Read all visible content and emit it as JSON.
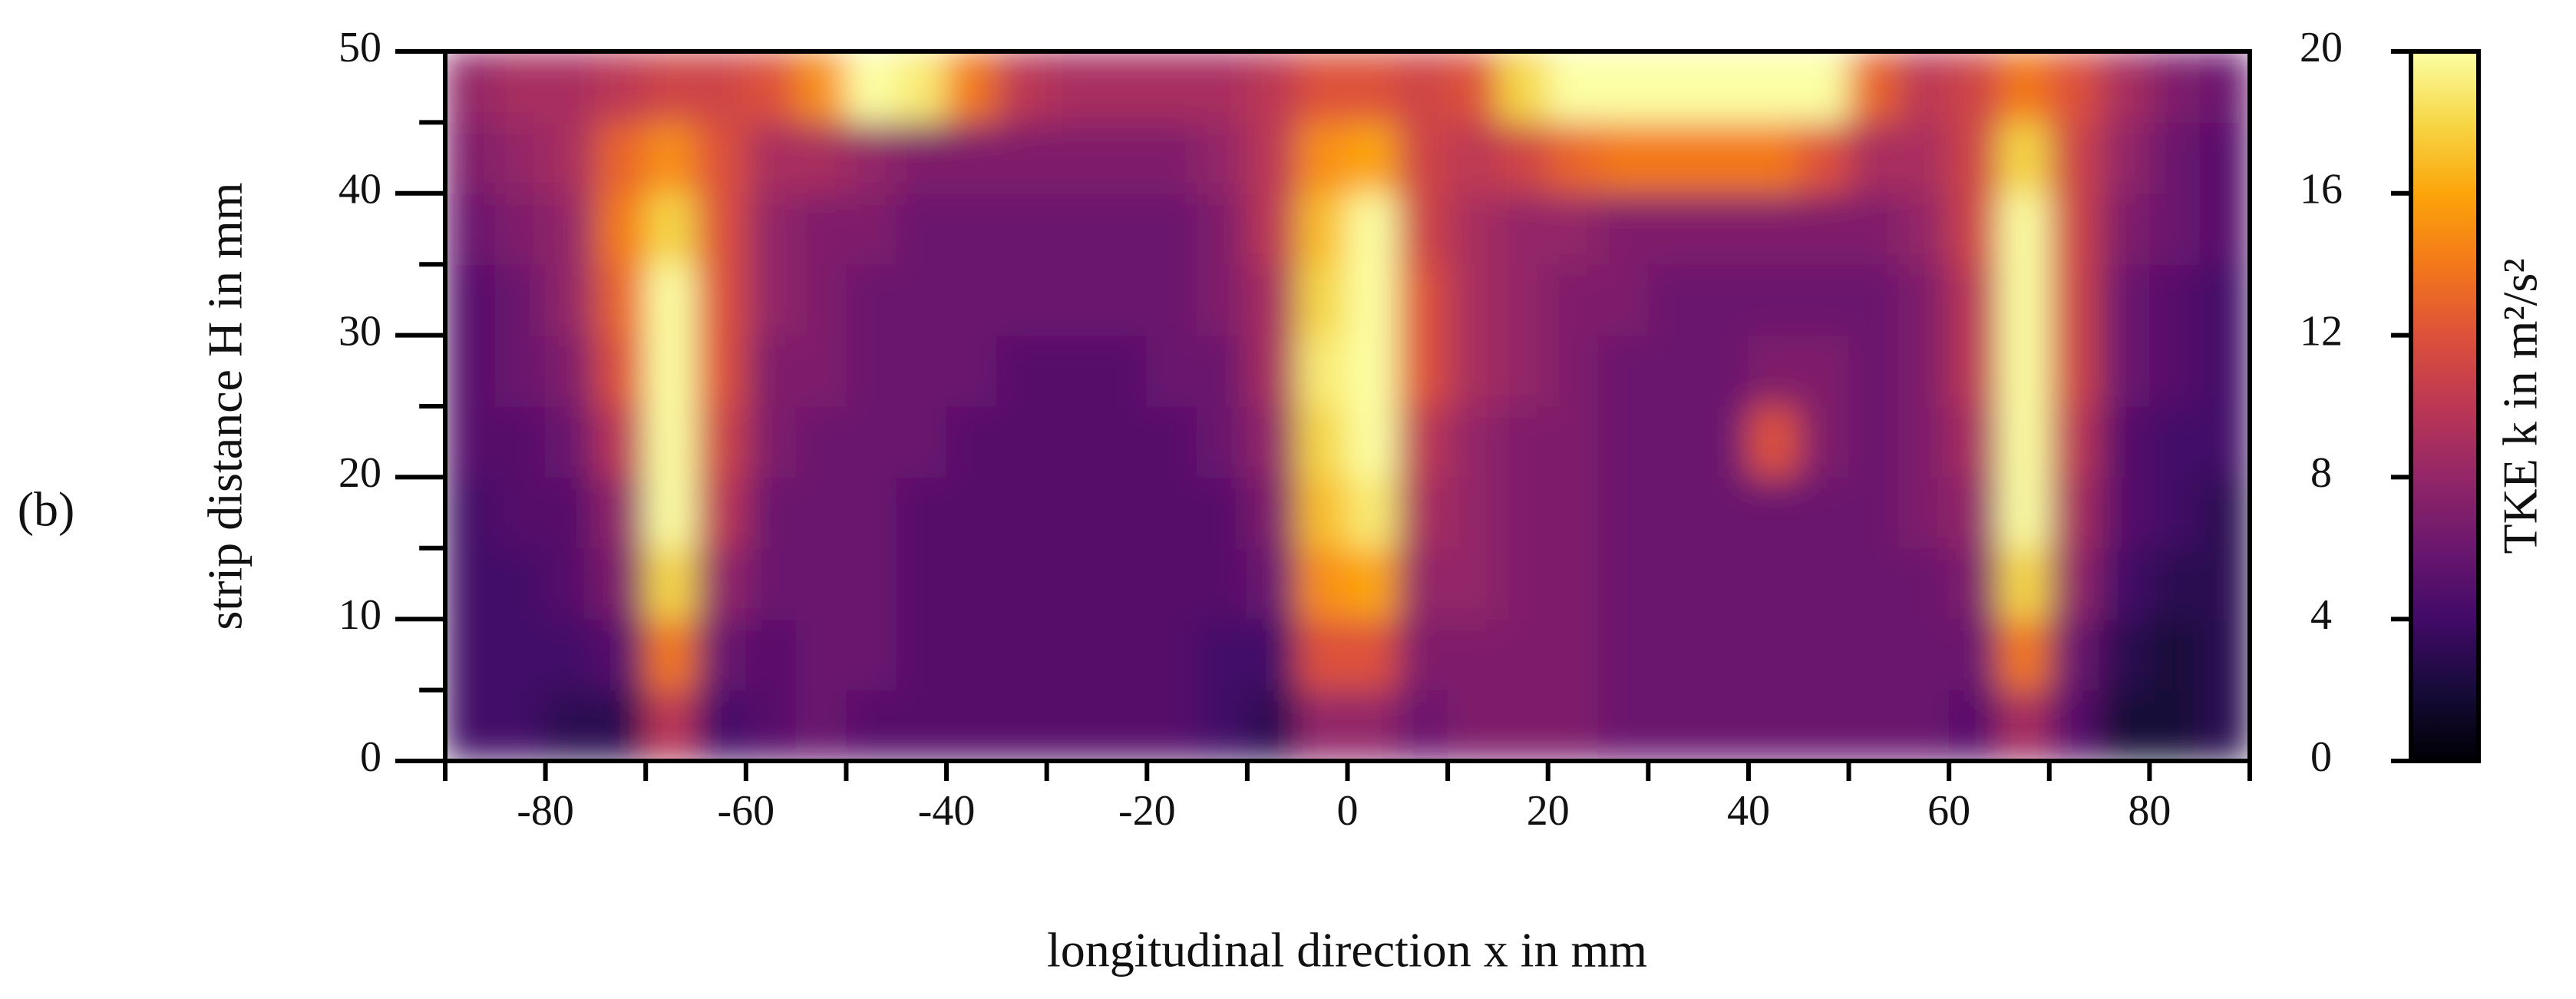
{
  "chart_data": {
    "type": "heatmap",
    "panel_label": "(b)",
    "xlabel": "longitudinal direction x in mm",
    "ylabel": "strip distance H in mm",
    "colorbar_label": "TKE k in m²/s²",
    "colormap": "inferno",
    "xlim": [
      -90,
      90
    ],
    "ylim": [
      0,
      50
    ],
    "zlim": [
      0,
      20
    ],
    "xticks": [
      -80,
      -60,
      -40,
      -20,
      0,
      20,
      40,
      60,
      80
    ],
    "xticks_minor": [
      -90,
      -70,
      -50,
      -30,
      -10,
      10,
      30,
      50,
      70,
      90
    ],
    "yticks": [
      0,
      10,
      20,
      30,
      40,
      50
    ],
    "yticks_minor": [
      5,
      15,
      25,
      35,
      45
    ],
    "zticks": [
      0,
      4,
      8,
      12,
      16,
      20
    ],
    "x": [
      -87.5,
      -82.5,
      -77.5,
      -72.5,
      -67.5,
      -62.5,
      -57.5,
      -52.5,
      -47.5,
      -42.5,
      -37.5,
      -32.5,
      -27.5,
      -22.5,
      -17.5,
      -12.5,
      -7.5,
      -2.5,
      2.5,
      7.5,
      12.5,
      17.5,
      22.5,
      27.5,
      32.5,
      37.5,
      42.5,
      47.5,
      52.5,
      57.5,
      62.5,
      67.5,
      72.5,
      77.5,
      82.5,
      87.5
    ],
    "y": [
      2.5,
      7.5,
      12.5,
      17.5,
      22.5,
      27.5,
      32.5,
      37.5,
      42.5,
      47.5
    ],
    "z": [
      [
        4,
        4,
        3,
        3,
        10,
        4,
        5,
        6,
        5,
        5,
        5,
        5,
        5,
        5,
        5,
        4,
        3,
        8,
        8,
        6,
        7,
        7,
        7,
        6,
        6,
        6,
        6,
        6,
        6,
        6,
        5,
        9,
        5,
        2,
        2,
        3
      ],
      [
        4,
        4,
        4,
        5,
        14,
        6,
        5,
        6,
        6,
        5,
        5,
        5,
        5,
        5,
        5,
        4,
        4,
        12,
        12,
        7,
        7,
        7,
        7,
        6,
        6,
        6,
        6,
        6,
        6,
        6,
        6,
        14,
        6,
        3,
        2,
        3
      ],
      [
        4,
        4,
        5,
        7,
        18,
        8,
        6,
        6,
        6,
        5,
        5,
        5,
        5,
        5,
        5,
        5,
        6,
        15,
        16,
        8,
        8,
        7,
        7,
        6,
        6,
        6,
        6,
        6,
        6,
        6,
        7,
        18,
        8,
        4,
        3,
        3
      ],
      [
        4,
        5,
        5,
        8,
        21,
        10,
        6,
        6,
        6,
        5,
        5,
        5,
        5,
        5,
        5,
        5,
        7,
        17,
        19,
        9,
        8,
        7,
        7,
        6,
        6,
        6,
        6,
        6,
        6,
        7,
        8,
        21,
        9,
        5,
        4,
        3
      ],
      [
        5,
        5,
        6,
        10,
        22,
        11,
        7,
        6,
        6,
        6,
        5,
        5,
        5,
        5,
        5,
        6,
        8,
        18,
        21,
        10,
        8,
        7,
        7,
        6,
        6,
        6,
        12,
        7,
        6,
        7,
        9,
        22,
        10,
        5,
        4,
        4
      ],
      [
        5,
        6,
        7,
        12,
        22,
        12,
        7,
        7,
        6,
        6,
        6,
        5,
        5,
        5,
        6,
        6,
        9,
        19,
        22,
        12,
        9,
        8,
        7,
        6,
        6,
        6,
        7,
        7,
        6,
        7,
        10,
        22,
        11,
        6,
        5,
        4
      ],
      [
        5,
        6,
        8,
        13,
        22,
        12,
        8,
        7,
        6,
        6,
        6,
        6,
        6,
        6,
        6,
        7,
        9,
        18,
        22,
        12,
        9,
        8,
        7,
        7,
        6,
        6,
        6,
        6,
        6,
        7,
        10,
        22,
        11,
        6,
        5,
        4
      ],
      [
        6,
        7,
        8,
        14,
        18,
        12,
        8,
        7,
        7,
        6,
        6,
        6,
        6,
        6,
        6,
        7,
        10,
        17,
        20,
        11,
        9,
        8,
        8,
        7,
        7,
        7,
        7,
        7,
        7,
        8,
        11,
        21,
        11,
        7,
        6,
        5
      ],
      [
        7,
        8,
        9,
        13,
        15,
        12,
        9,
        9,
        8,
        7,
        7,
        7,
        7,
        7,
        7,
        8,
        10,
        15,
        16,
        11,
        10,
        11,
        13,
        14,
        14,
        14,
        14,
        12,
        9,
        9,
        11,
        18,
        11,
        8,
        6,
        5
      ],
      [
        8,
        9,
        9,
        10,
        11,
        11,
        12,
        15,
        20,
        19,
        14,
        10,
        9,
        9,
        9,
        9,
        10,
        12,
        12,
        11,
        12,
        18,
        22,
        22,
        22,
        22,
        22,
        20,
        13,
        10,
        11,
        14,
        12,
        9,
        7,
        6
      ]
    ]
  }
}
